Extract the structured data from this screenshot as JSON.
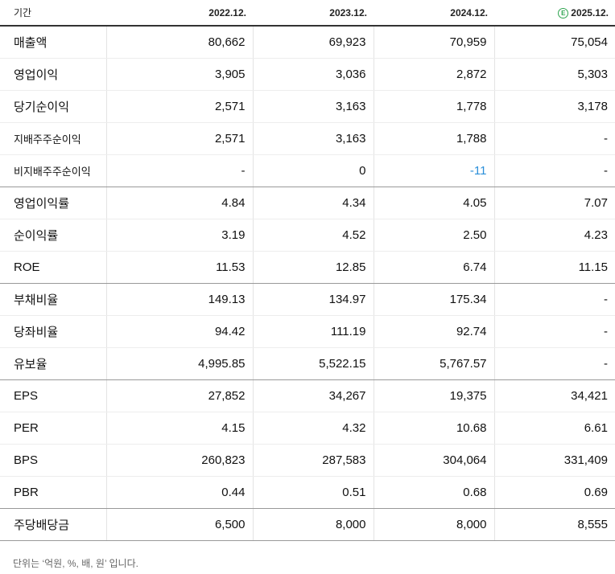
{
  "header": {
    "label": "기간",
    "periods": [
      "2022.12.",
      "2023.12.",
      "2024.12.",
      "2025.12."
    ],
    "estimate_icon": "estimate-e-icon",
    "estimate_color": "#2ea44f"
  },
  "rows": [
    {
      "label": "매출액",
      "values": [
        "80,662",
        "69,923",
        "70,959",
        "75,054"
      ]
    },
    {
      "label": "영업이익",
      "values": [
        "3,905",
        "3,036",
        "2,872",
        "5,303"
      ]
    },
    {
      "label": "당기순이익",
      "values": [
        "2,571",
        "3,163",
        "1,778",
        "3,178"
      ]
    },
    {
      "label": "지배주주순이익",
      "values": [
        "2,571",
        "3,163",
        "1,788",
        "-"
      ]
    },
    {
      "label": "비지배주주순이익",
      "values": [
        "-",
        "0",
        "-11",
        "-"
      ]
    },
    {
      "label": "영업이익률",
      "values": [
        "4.84",
        "4.34",
        "4.05",
        "7.07"
      ]
    },
    {
      "label": "순이익률",
      "values": [
        "3.19",
        "4.52",
        "2.50",
        "4.23"
      ]
    },
    {
      "label": "ROE",
      "values": [
        "11.53",
        "12.85",
        "6.74",
        "11.15"
      ]
    },
    {
      "label": "부채비율",
      "values": [
        "149.13",
        "134.97",
        "175.34",
        "-"
      ]
    },
    {
      "label": "당좌비율",
      "values": [
        "94.42",
        "111.19",
        "92.74",
        "-"
      ]
    },
    {
      "label": "유보율",
      "values": [
        "4,995.85",
        "5,522.15",
        "5,767.57",
        "-"
      ]
    },
    {
      "label": "EPS",
      "values": [
        "27,852",
        "34,267",
        "19,375",
        "34,421"
      ]
    },
    {
      "label": "PER",
      "values": [
        "4.15",
        "4.32",
        "10.68",
        "6.61"
      ]
    },
    {
      "label": "BPS",
      "values": [
        "260,823",
        "287,583",
        "304,064",
        "331,409"
      ]
    },
    {
      "label": "PBR",
      "values": [
        "0.44",
        "0.51",
        "0.68",
        "0.69"
      ]
    },
    {
      "label": "주당배당금",
      "values": [
        "6,500",
        "8,000",
        "8,000",
        "8,555"
      ]
    }
  ],
  "negative_color": "#2b8fd9",
  "footnote": "단위는 ‘억원, %, 배, 원’ 입니다."
}
